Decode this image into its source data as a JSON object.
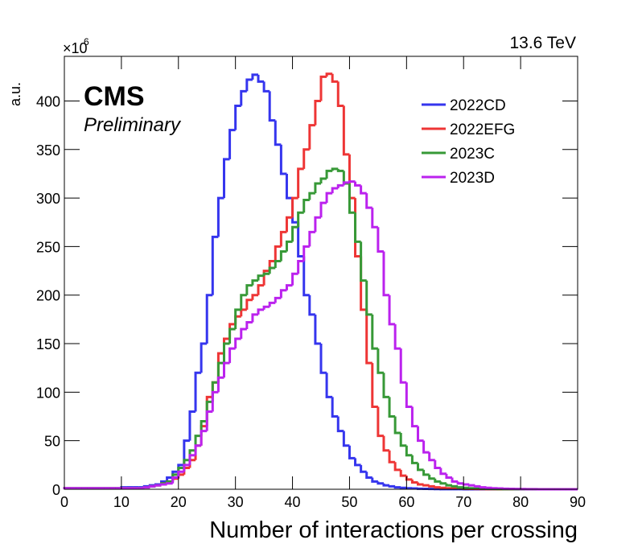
{
  "chart_data": {
    "type": "histogram",
    "experiment": "CMS",
    "status": "Preliminary",
    "energy": "13.6 TeV",
    "xlabel": "Number of interactions per crossing",
    "ylabel": "a.u.",
    "y_multiplier": {
      "base": "×10",
      "exponent": "6"
    },
    "legend": "upper right",
    "xlim": [
      0,
      90
    ],
    "ylim": [
      0,
      446
    ],
    "xticks": [
      0,
      10,
      20,
      30,
      40,
      50,
      60,
      70,
      80,
      90
    ],
    "yticks": [
      0,
      50,
      100,
      150,
      200,
      250,
      300,
      350,
      400
    ],
    "bins": [
      0,
      1,
      2,
      3,
      4,
      5,
      6,
      7,
      8,
      9,
      10,
      11,
      12,
      13,
      14,
      15,
      16,
      17,
      18,
      19,
      20,
      21,
      22,
      23,
      24,
      25,
      26,
      27,
      28,
      29,
      30,
      31,
      32,
      33,
      34,
      35,
      36,
      37,
      38,
      39,
      40,
      41,
      42,
      43,
      44,
      45,
      46,
      47,
      48,
      49,
      50,
      51,
      52,
      53,
      54,
      55,
      56,
      57,
      58,
      59,
      60,
      61,
      62,
      63,
      64,
      65,
      66,
      67,
      68,
      69,
      70,
      71,
      72,
      73,
      74,
      75,
      76,
      77,
      78,
      79,
      80,
      81,
      82,
      83,
      84,
      85,
      86,
      87,
      88,
      89,
      90
    ],
    "series": [
      {
        "name": "2022CD",
        "color": "#3535ee",
        "values": [
          1,
          1,
          1,
          1,
          1,
          1,
          1,
          1,
          1,
          1,
          2,
          2,
          2,
          2,
          3,
          4,
          5,
          8,
          12,
          18,
          25,
          50,
          80,
          120,
          150,
          200,
          260,
          300,
          340,
          370,
          395,
          410,
          422,
          427,
          420,
          410,
          380,
          355,
          325,
          300,
          275,
          240,
          200,
          180,
          150,
          120,
          95,
          75,
          60,
          45,
          32,
          25,
          18,
          12,
          8,
          6,
          4,
          3,
          2,
          1.5,
          1,
          0.8,
          0.5,
          0.4,
          0.3,
          0.2,
          0.1,
          0.1,
          0.1,
          0.1,
          0,
          0,
          0,
          0,
          0,
          0,
          0,
          0,
          0,
          0,
          0,
          0,
          0,
          0,
          0,
          0,
          0,
          0,
          0,
          0
        ]
      },
      {
        "name": "2022EFG",
        "color": "#ee3535",
        "values": [
          1,
          1,
          1,
          1,
          1,
          1,
          1,
          1,
          1,
          1,
          1,
          1,
          1,
          1,
          2,
          3,
          4,
          6,
          8,
          11,
          15,
          22,
          30,
          45,
          65,
          95,
          110,
          140,
          155,
          170,
          178,
          185,
          195,
          200,
          210,
          225,
          235,
          250,
          265,
          280,
          300,
          330,
          350,
          375,
          400,
          425,
          428,
          420,
          395,
          345,
          300,
          240,
          185,
          130,
          85,
          55,
          40,
          28,
          20,
          14,
          10,
          7,
          5,
          4,
          3,
          2,
          1.5,
          1,
          1,
          0.8,
          0.5,
          0.4,
          0.3,
          0.2,
          0.1,
          0.1,
          0,
          0,
          0,
          0,
          0,
          0,
          0,
          0,
          0,
          0,
          0,
          0,
          0,
          0
        ]
      },
      {
        "name": "2023C",
        "color": "#379937",
        "values": [
          1,
          1,
          1,
          1,
          1,
          1,
          1,
          1,
          1,
          1,
          1,
          1,
          1,
          1,
          2,
          3,
          4,
          6,
          8,
          15,
          22,
          30,
          40,
          55,
          70,
          90,
          110,
          130,
          150,
          165,
          185,
          200,
          210,
          215,
          220,
          222,
          228,
          235,
          245,
          255,
          270,
          285,
          298,
          305,
          315,
          320,
          328,
          330,
          328,
          315,
          285,
          255,
          215,
          180,
          145,
          120,
          95,
          75,
          58,
          45,
          35,
          27,
          20,
          15,
          11,
          8,
          6,
          4,
          3,
          2,
          1.5,
          1,
          0.8,
          0.5,
          0.4,
          0.3,
          0.2,
          0.1,
          0.1,
          0,
          0,
          0,
          0,
          0,
          0,
          0,
          0,
          0,
          0,
          0
        ]
      },
      {
        "name": "2023D",
        "color": "#bb22ee",
        "values": [
          1,
          1,
          1,
          1,
          1,
          1,
          1,
          1,
          1,
          1,
          1,
          1,
          1,
          1,
          2,
          3,
          4,
          5,
          6,
          12,
          18,
          25,
          35,
          45,
          60,
          80,
          100,
          115,
          130,
          145,
          155,
          165,
          172,
          180,
          185,
          188,
          192,
          197,
          205,
          210,
          222,
          235,
          250,
          265,
          280,
          295,
          305,
          310,
          313,
          316,
          317,
          313,
          305,
          290,
          270,
          245,
          200,
          170,
          145,
          110,
          85,
          65,
          50,
          38,
          30,
          22,
          16,
          12,
          8,
          6,
          5,
          4,
          3,
          2,
          1.5,
          1,
          0.8,
          0.5,
          0.4,
          0.3,
          0.2,
          0.1,
          0.1,
          0,
          0,
          0,
          0,
          0,
          0,
          0
        ]
      }
    ]
  }
}
